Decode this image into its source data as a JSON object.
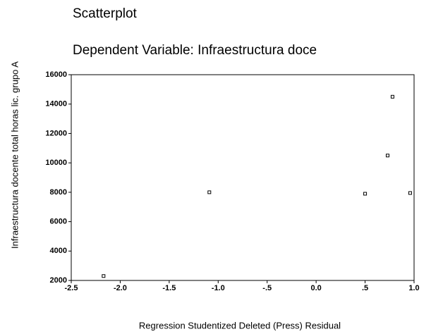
{
  "chart_data": {
    "type": "scatter",
    "title": "Scatterplot",
    "subtitle": "Dependent Variable: Infraestructura doce",
    "x_label": "Regression Studentized Deleted (Press) Residual",
    "y_label": "Infraestructura docente total horas lic. grupo A",
    "x": [
      -2.17,
      -1.09,
      0.5,
      0.78,
      0.73,
      0.96
    ],
    "values": [
      2300,
      8000,
      7900,
      14500,
      10500,
      7950
    ],
    "color": "#000000",
    "xlim": [
      -2.5,
      1.0
    ],
    "xticks": [
      -2.5,
      {
        "value": -2.0,
        "label": "-2.0"
      },
      -1.5,
      {
        "value": -1.0,
        "label": "-1.0"
      },
      {
        "value": -0.5,
        "label": "-.5"
      },
      {
        "value": 0.0,
        "label": "0.0"
      },
      {
        "value": 0.5,
        "label": ".5"
      },
      {
        "value": 1.0,
        "label": "1.0"
      }
    ],
    "ylim": [
      2000,
      16000
    ],
    "yticks": [
      2000,
      4000,
      6000,
      8000,
      10000,
      12000,
      14000,
      16000
    ],
    "grid": false
  }
}
